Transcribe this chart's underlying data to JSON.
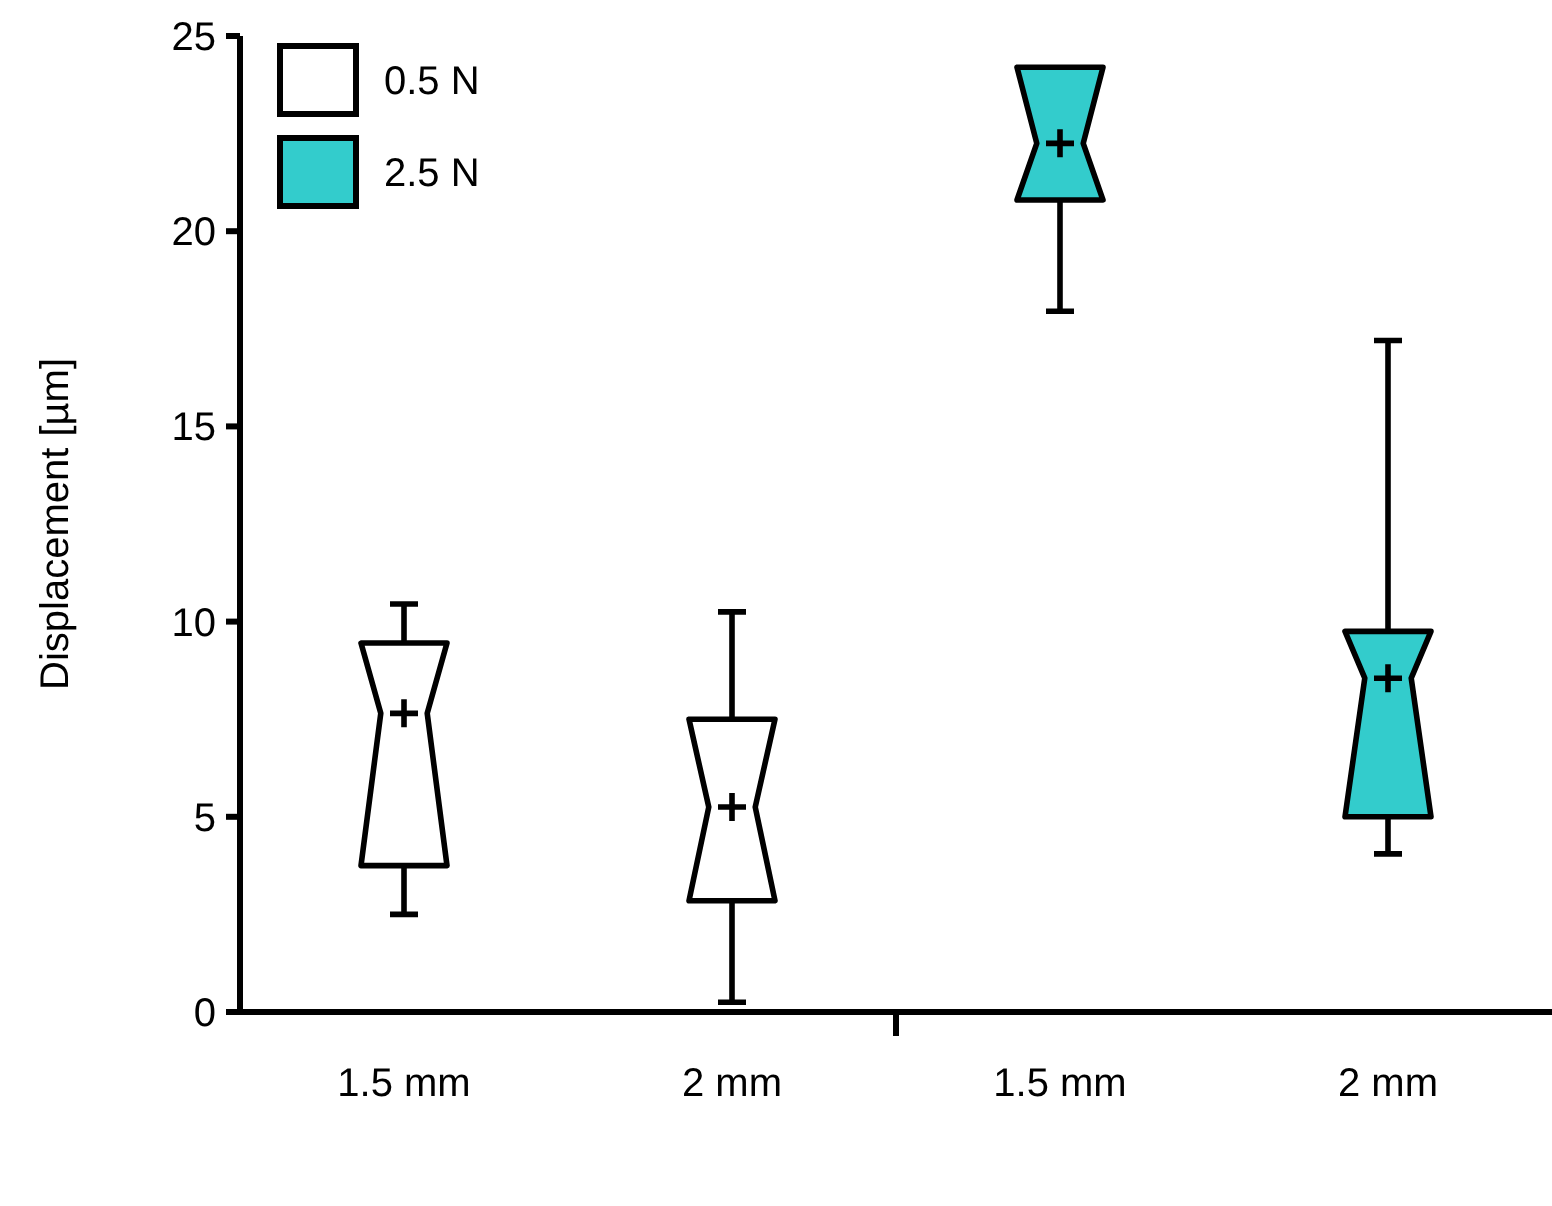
{
  "chart_data": {
    "type": "box",
    "ylabel": "Displacement [µm]",
    "categories": [
      "1.5 mm",
      "2 mm",
      "1.5 mm",
      "2 mm"
    ],
    "ylim": [
      0,
      25
    ],
    "yticks": [
      0,
      5,
      10,
      15,
      20,
      25
    ],
    "grid": false,
    "legend": "top left",
    "series": [
      {
        "name": "0.5 N",
        "color": "#ffffff",
        "boxes": [
          {
            "low": 2.5,
            "q1": 3.75,
            "median": 7.65,
            "q3": 9.45,
            "high": 10.45
          },
          {
            "low": 0.25,
            "q1": 2.85,
            "median": 5.25,
            "q3": 7.5,
            "high": 10.25
          },
          null,
          null
        ]
      },
      {
        "name": "2.5 N",
        "color": "#33cccc",
        "boxes": [
          null,
          null,
          {
            "low": 17.95,
            "q1": 20.8,
            "median": 22.25,
            "q3": 24.2,
            "high": 24.2
          },
          {
            "low": 4.05,
            "q1": 5,
            "median": 8.55,
            "q3": 9.75,
            "high": 17.2
          }
        ]
      }
    ]
  }
}
